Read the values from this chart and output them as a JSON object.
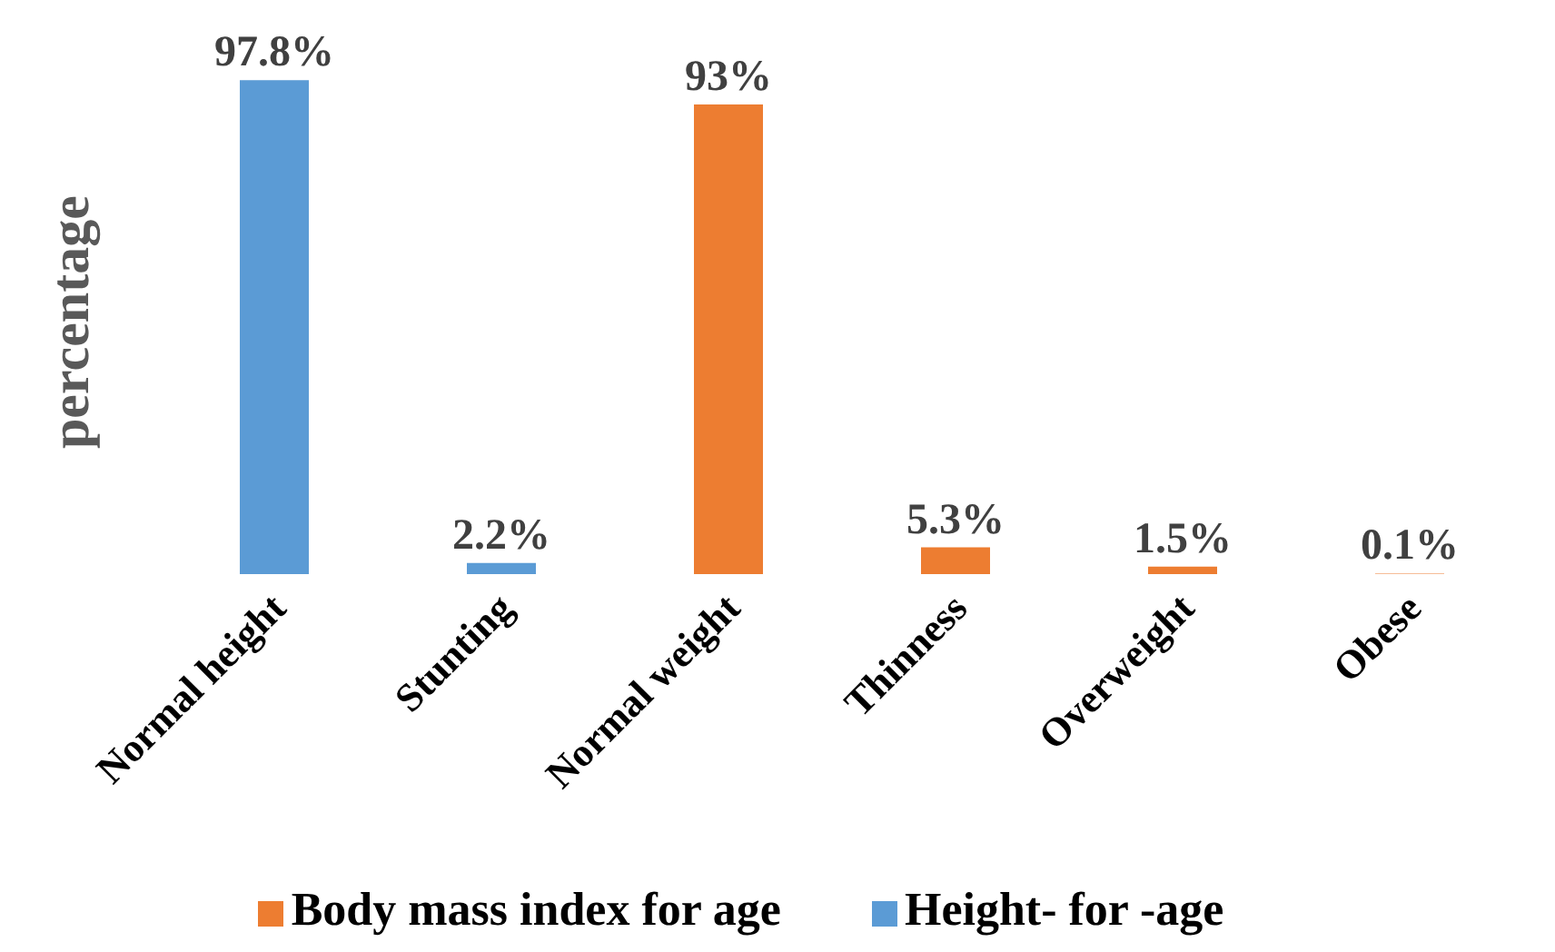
{
  "chart_data": {
    "type": "bar",
    "ylabel": "percentage",
    "categories": [
      "Normal height",
      "Stunting",
      "Normal weight",
      "Thinness",
      "Overweight",
      "Obese"
    ],
    "stacked": true,
    "series": [
      {
        "name": "Height- for -age",
        "color": "#5b9bd5",
        "values": [
          97.8,
          2.2,
          null,
          null,
          null,
          null
        ],
        "value_labels": [
          "97.8%",
          "2.2%",
          null,
          null,
          null,
          null
        ]
      },
      {
        "name": "Body mass index for age",
        "color": "#ed7d31",
        "values": [
          null,
          null,
          93,
          5.3,
          1.5,
          0.1
        ],
        "value_labels": [
          null,
          null,
          "93%",
          "5.3%",
          "1.5%",
          "0.1%"
        ]
      }
    ],
    "legend": "bottom",
    "grid": false,
    "tick_labels": "x"
  }
}
